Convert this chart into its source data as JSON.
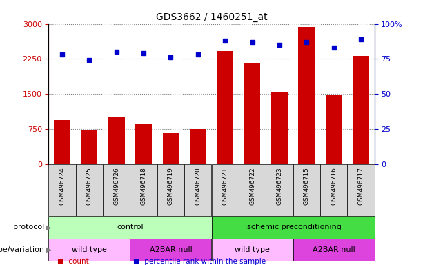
{
  "title": "GDS3662 / 1460251_at",
  "samples": [
    "GSM496724",
    "GSM496725",
    "GSM496726",
    "GSM496718",
    "GSM496719",
    "GSM496720",
    "GSM496721",
    "GSM496722",
    "GSM496723",
    "GSM496715",
    "GSM496716",
    "GSM496717"
  ],
  "counts": [
    950,
    720,
    1000,
    870,
    680,
    750,
    2420,
    2150,
    1530,
    2940,
    1480,
    2320
  ],
  "percentiles": [
    78,
    74,
    80,
    79,
    76,
    78,
    88,
    87,
    85,
    87,
    83,
    89
  ],
  "ylim_left": [
    0,
    3000
  ],
  "ylim_right": [
    0,
    100
  ],
  "yticks_left": [
    0,
    750,
    1500,
    2250,
    3000
  ],
  "yticks_right": [
    0,
    25,
    50,
    75,
    100
  ],
  "bar_color": "#cc0000",
  "dot_color": "#0000cc",
  "xtick_bg": "#d8d8d8",
  "protocol_control_color": "#bbffbb",
  "protocol_ischemic_color": "#44dd44",
  "genotype_wildtype_color": "#ffbbff",
  "genotype_a2bar_color": "#dd44dd",
  "protocol_labels": [
    "control",
    "ischemic preconditioning"
  ],
  "protocol_ranges": [
    [
      0,
      6
    ],
    [
      6,
      12
    ]
  ],
  "genotype_labels": [
    "wild type",
    "A2BAR null",
    "wild type",
    "A2BAR null"
  ],
  "genotype_ranges": [
    [
      0,
      3
    ],
    [
      3,
      6
    ],
    [
      6,
      9
    ],
    [
      9,
      12
    ]
  ],
  "row1_label": "protocol",
  "row2_label": "genotype/variation",
  "legend_count": "count",
  "legend_pct": "percentile rank within the sample"
}
